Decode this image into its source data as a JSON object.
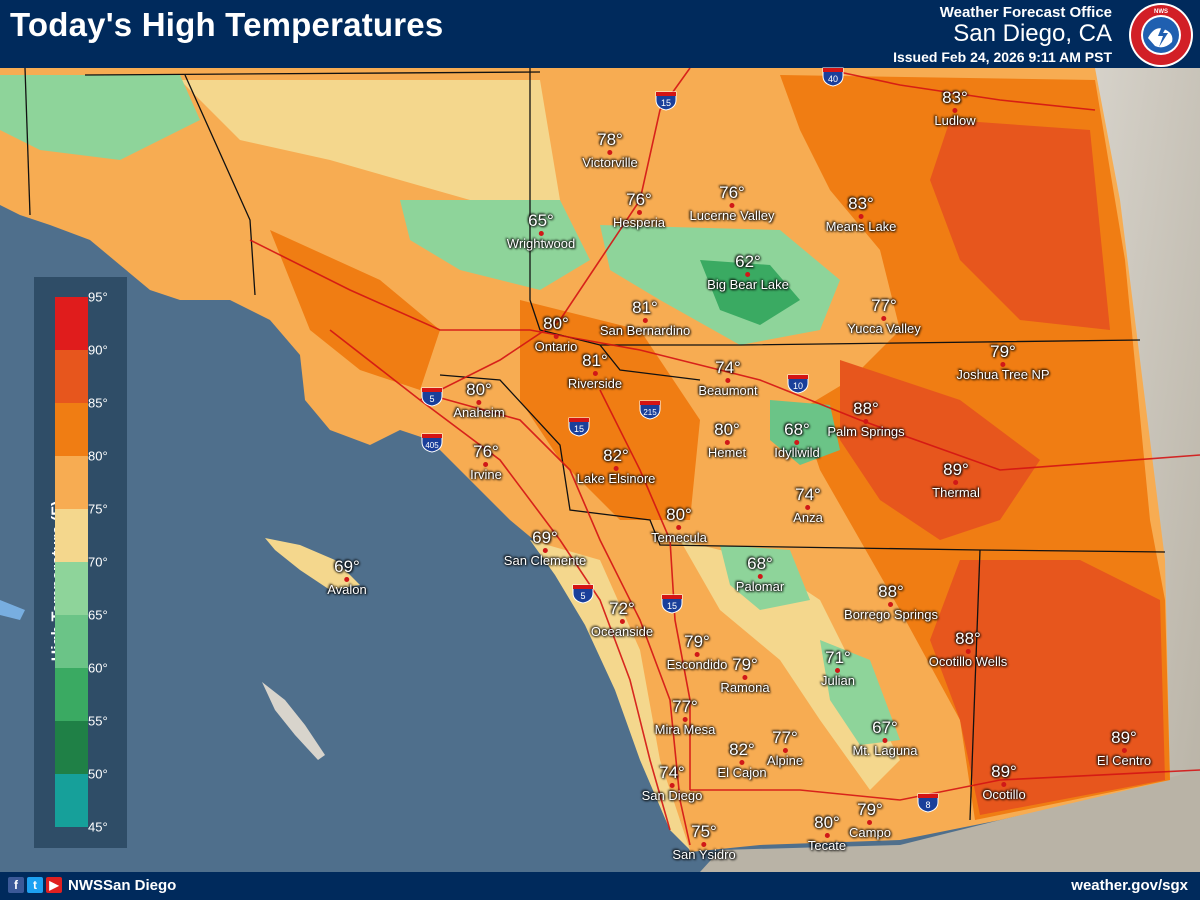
{
  "header": {
    "title": "Today's High Temperatures",
    "office_line": "Weather Forecast Office",
    "office_city": "San Diego, CA",
    "issued": "Issued Feb 24, 2026 9:11 AM PST",
    "logo_text": "NATIONAL WEATHER SERVICE"
  },
  "footer": {
    "handle": "NWSSan Diego",
    "website": "weather.gov/sgx",
    "social_icons": [
      "facebook-icon",
      "twitter-icon",
      "youtube-icon"
    ]
  },
  "legend": {
    "title": "High Temperature (F)",
    "ticks": [
      "95°",
      "90°",
      "85°",
      "80°",
      "75°",
      "70°",
      "65°",
      "60°",
      "55°",
      "50°",
      "45°"
    ],
    "colors": [
      "#e01c1c",
      "#e7561d",
      "#f07d13",
      "#f7ac52",
      "#f4d78d",
      "#8ed49a",
      "#6bc487",
      "#3aaa62",
      "#1f8046",
      "#16a09a"
    ]
  },
  "cities": [
    {
      "name": "Ludlow",
      "temp": "83°"
    },
    {
      "name": "Victorville",
      "temp": "78°"
    },
    {
      "name": "Hesperia",
      "temp": "76°"
    },
    {
      "name": "Lucerne Valley",
      "temp": "76°"
    },
    {
      "name": "Means Lake",
      "temp": "83°"
    },
    {
      "name": "Wrightwood",
      "temp": "65°"
    },
    {
      "name": "Big Bear Lake",
      "temp": "62°"
    },
    {
      "name": "San Bernardino",
      "temp": "81°"
    },
    {
      "name": "Yucca Valley",
      "temp": "77°"
    },
    {
      "name": "Ontario",
      "temp": "80°"
    },
    {
      "name": "Joshua Tree NP",
      "temp": "79°"
    },
    {
      "name": "Riverside",
      "temp": "81°"
    },
    {
      "name": "Beaumont",
      "temp": "74°"
    },
    {
      "name": "Anaheim",
      "temp": "80°"
    },
    {
      "name": "Palm Springs",
      "temp": "88°"
    },
    {
      "name": "Hemet",
      "temp": "80°"
    },
    {
      "name": "Idyllwild",
      "temp": "68°"
    },
    {
      "name": "Irvine",
      "temp": "76°"
    },
    {
      "name": "Lake Elsinore",
      "temp": "82°"
    },
    {
      "name": "Thermal",
      "temp": "89°"
    },
    {
      "name": "Anza",
      "temp": "74°"
    },
    {
      "name": "Temecula",
      "temp": "80°"
    },
    {
      "name": "San Clemente",
      "temp": "69°"
    },
    {
      "name": "Avalon",
      "temp": "69°"
    },
    {
      "name": "Palomar",
      "temp": "68°"
    },
    {
      "name": "Borrego Springs",
      "temp": "88°"
    },
    {
      "name": "Oceanside",
      "temp": "72°"
    },
    {
      "name": "Ocotillo Wells",
      "temp": "88°"
    },
    {
      "name": "Escondido",
      "temp": "79°"
    },
    {
      "name": "Ramona",
      "temp": "79°"
    },
    {
      "name": "Julian",
      "temp": "71°"
    },
    {
      "name": "Mira Mesa",
      "temp": "77°"
    },
    {
      "name": "Mt. Laguna",
      "temp": "67°"
    },
    {
      "name": "El Cajon",
      "temp": "82°"
    },
    {
      "name": "Alpine",
      "temp": "77°"
    },
    {
      "name": "El Centro",
      "temp": "89°"
    },
    {
      "name": "San Diego",
      "temp": "74°"
    },
    {
      "name": "Ocotillo",
      "temp": "89°"
    },
    {
      "name": "Campo",
      "temp": "79°"
    },
    {
      "name": "Tecate",
      "temp": "80°"
    },
    {
      "name": "San Ysidro",
      "temp": "75°"
    }
  ],
  "highway_shields": [
    "15",
    "40",
    "5",
    "405",
    "215",
    "15",
    "10",
    "5",
    "15",
    "8"
  ]
}
